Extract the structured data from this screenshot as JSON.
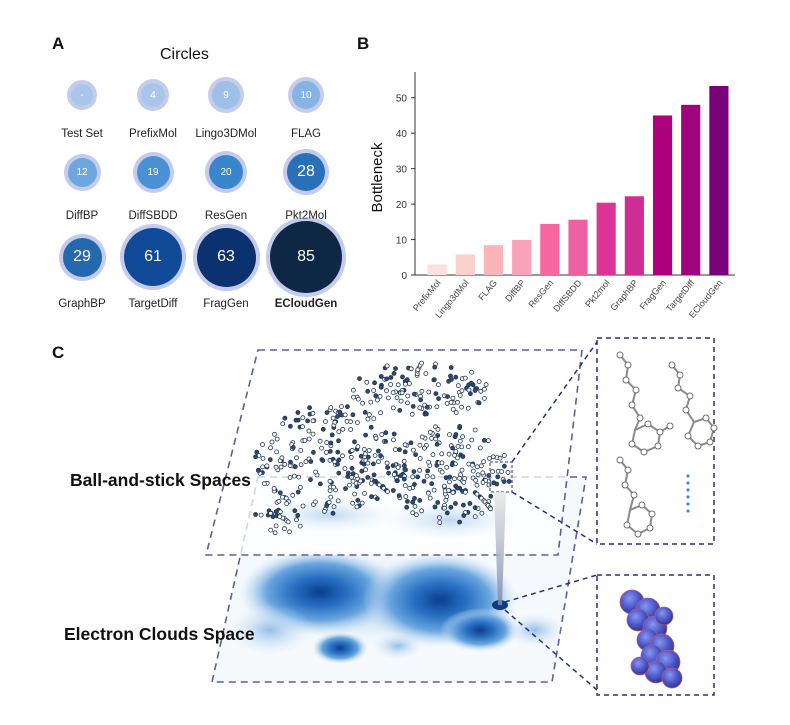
{
  "panel_letters": {
    "a": "A",
    "b": "B",
    "c": "C"
  },
  "panelA": {
    "title": "Circles",
    "items": [
      {
        "label": "Test Set",
        "value": "-",
        "bold": false,
        "color": "#a9c6ea",
        "level": 0.0
      },
      {
        "label": "PrefixMol",
        "value": "4",
        "bold": false,
        "color": "#a9c6ea",
        "level": 0.05
      },
      {
        "label": "Lingo3DMol",
        "value": "9",
        "bold": false,
        "color": "#9ec0e7",
        "level": 0.11
      },
      {
        "label": "FLAG",
        "value": "10",
        "bold": false,
        "color": "#86b3e2",
        "level": 0.12
      },
      {
        "label": "DiffBP",
        "value": "12",
        "bold": false,
        "color": "#6ea7dd",
        "level": 0.14
      },
      {
        "label": "DiffSBDD",
        "value": "19",
        "bold": false,
        "color": "#4a91d3",
        "level": 0.22
      },
      {
        "label": "ResGen",
        "value": "20",
        "bold": false,
        "color": "#3a86cc",
        "level": 0.24
      },
      {
        "label": "Pkt2Mol",
        "value": "28",
        "bold": false,
        "color": "#2a70b9",
        "level": 0.33
      },
      {
        "label": "GraphBP",
        "value": "29",
        "bold": false,
        "color": "#2468ae",
        "level": 0.34
      },
      {
        "label": "TargetDiff",
        "value": "61",
        "bold": false,
        "color": "#114a98",
        "level": 0.72
      },
      {
        "label": "FragGen",
        "value": "63",
        "bold": false,
        "color": "#0b316e",
        "level": 0.74
      },
      {
        "label": "ECloudGen",
        "value": "85",
        "bold": true,
        "color": "#0d2745",
        "level": 1.0
      }
    ]
  },
  "chart_data": {
    "type": "bar",
    "ylabel": "Bottleneck",
    "xlabel": "",
    "ylim": [
      0,
      55
    ],
    "yticks": [
      0,
      10,
      20,
      30,
      40,
      50
    ],
    "categories": [
      "PrefixMol",
      "Lingo3dMol",
      "FLAG",
      "DiffBP",
      "ResGen",
      "DiffSBDD",
      "Pkt2mol",
      "GraphBP",
      "FragGen",
      "TargetDiff",
      "ECloudGen"
    ],
    "values": [
      3,
      5.8,
      8.4,
      9.9,
      14.4,
      15.6,
      20.4,
      22.2,
      45,
      48,
      53.3
    ],
    "colors": [
      "#fde0dd",
      "#fcd0cb",
      "#fbb4b9",
      "#f9a3b6",
      "#f768a1",
      "#f05fa2",
      "#dd3497",
      "#d12c94",
      "#ae017e",
      "#a0047c",
      "#7a0177"
    ]
  },
  "panelC": {
    "ball_stick_label": "Ball-and-stick Spaces",
    "electron_label": "Electron Clouds Space"
  }
}
